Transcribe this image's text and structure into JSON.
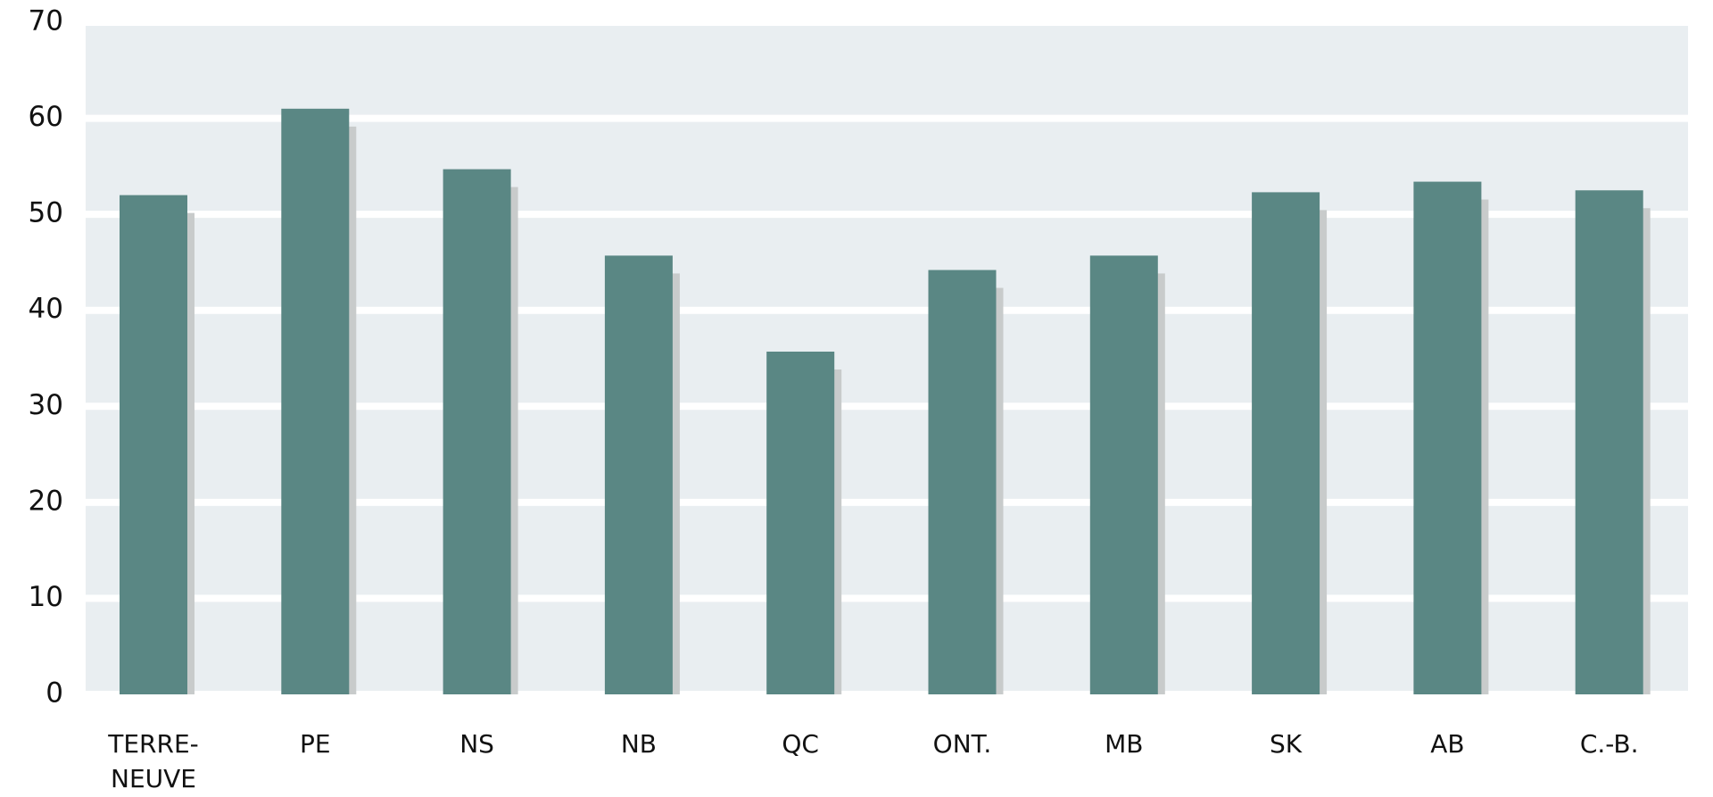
{
  "chart_data": {
    "type": "bar",
    "categories": [
      "TERRE-\nNEUVE",
      "PE",
      "NS",
      "NB",
      "QC",
      "ONT.",
      "MB",
      "SK",
      "AB",
      "C.-B."
    ],
    "values": [
      52,
      61,
      54.7,
      45.7,
      35.7,
      44.2,
      45.7,
      52.3,
      53.4,
      52.5
    ],
    "color": "#5a8784",
    "ylim": [
      0,
      70
    ],
    "yticks": [
      0,
      10,
      20,
      30,
      40,
      50,
      60,
      70
    ],
    "grid": true
  }
}
